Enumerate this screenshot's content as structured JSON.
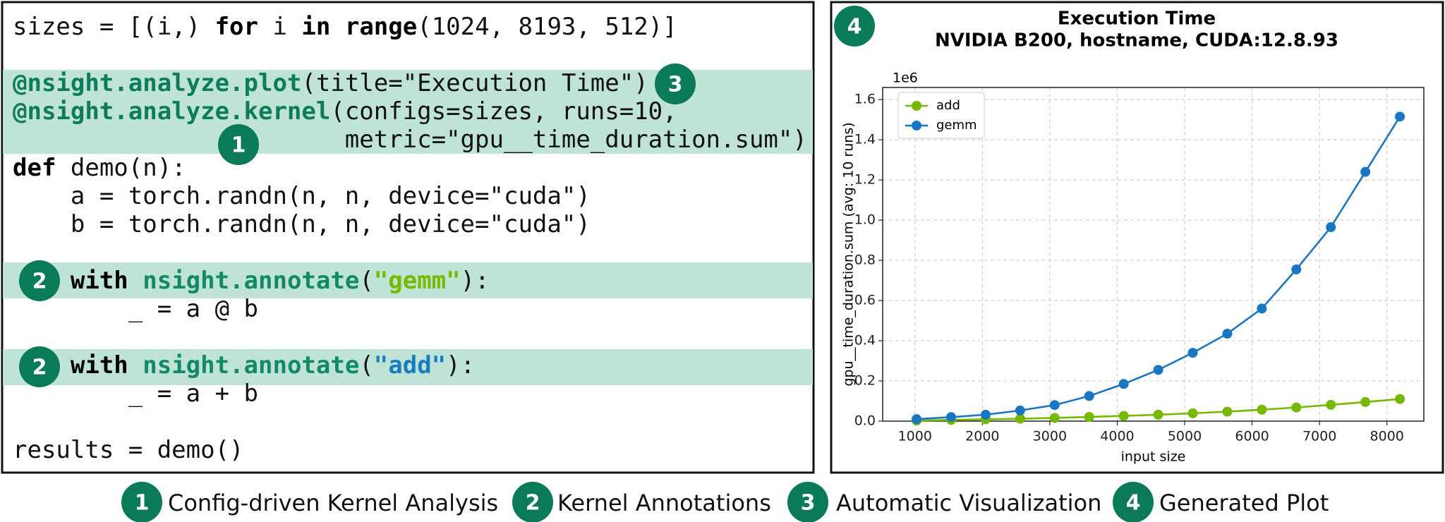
{
  "code": {
    "lines": [
      [
        "sizes = [(i,) ",
        "for",
        " i ",
        "in",
        " ",
        "range",
        "(1024, 8193, 512)]"
      ],
      [],
      [
        "@nsight.analyze.plot",
        "(title=\"Execution Time\")"
      ],
      [
        "@nsight.analyze.kernel",
        "(configs=sizes, runs=10,"
      ],
      [
        "                       metric=\"gpu__time_duration.sum\")"
      ],
      [
        "def",
        " demo(n):"
      ],
      [
        "    a = torch.randn(n, n, device=\"cuda\")"
      ],
      [
        "    b = torch.randn(n, n, device=\"cuda\")"
      ],
      [],
      [
        "    ",
        "with",
        " ",
        "nsight.annotate",
        "(",
        "\"gemm\"",
        "):"
      ],
      [
        "        _ = a @ b"
      ],
      [],
      [
        "    ",
        "with",
        " ",
        "nsight.annotate",
        "(",
        "\"add\"",
        "):"
      ],
      [
        "        _ = a + b"
      ],
      [],
      [
        "results = demo()"
      ]
    ]
  },
  "badges": [
    "1",
    "2",
    "3",
    "4"
  ],
  "captions": [
    "Config-driven Kernel Analysis",
    "Kernel Annotations",
    "Automatic Visualization",
    "Generated Plot"
  ],
  "chart_data": {
    "type": "line",
    "title": "Execution Time",
    "subtitle": "NVIDIA B200, hostname, CUDA:12.8.93",
    "y_offset_label": "1e6",
    "xlabel": "input size",
    "ylabel": "gpu__time_duration.sum (avg: 10 runs)",
    "x": [
      1024,
      1536,
      2048,
      2560,
      3072,
      3584,
      4096,
      4608,
      5120,
      5632,
      6144,
      6656,
      7168,
      7680,
      8192
    ],
    "series": [
      {
        "name": "add",
        "color": "#76b900",
        "values": [
          0.003,
          0.006,
          0.009,
          0.012,
          0.016,
          0.021,
          0.026,
          0.032,
          0.039,
          0.047,
          0.057,
          0.068,
          0.081,
          0.095,
          0.11
        ]
      },
      {
        "name": "gemm",
        "color": "#1a75c2",
        "values": [
          0.01,
          0.02,
          0.032,
          0.053,
          0.08,
          0.125,
          0.185,
          0.255,
          0.34,
          0.435,
          0.56,
          0.755,
          0.965,
          1.24,
          1.515
        ]
      }
    ],
    "xlim": [
      521,
      8547
    ],
    "xticks": [
      1000,
      2000,
      3000,
      4000,
      5000,
      6000,
      7000,
      8000
    ],
    "ylim": [
      0,
      1.66
    ],
    "yticks": [
      {
        "value": 0,
        "label": "0.0"
      },
      0.2,
      0.4,
      0.6,
      0.8,
      {
        "value": 1,
        "label": "1.0"
      },
      1.2,
      1.4,
      1.6
    ],
    "grid": true,
    "legend": "upper left"
  }
}
